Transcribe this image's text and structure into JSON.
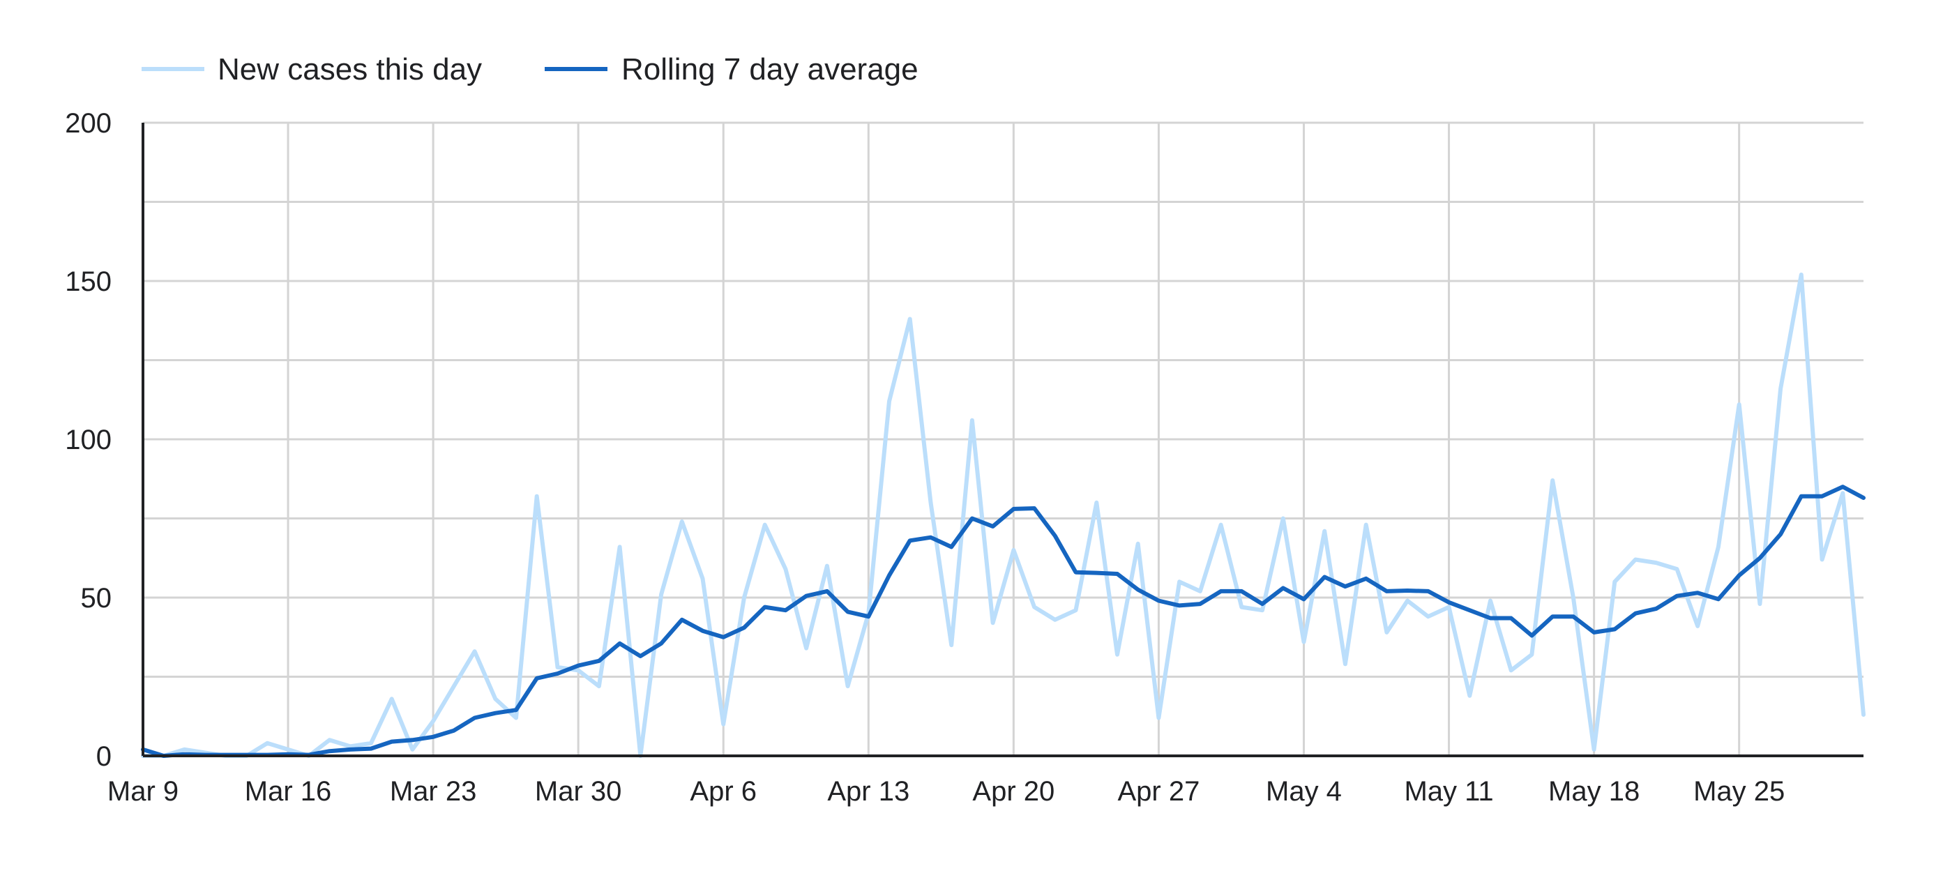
{
  "chart_data": {
    "type": "line",
    "title": "",
    "xlabel": "",
    "ylabel": "",
    "ylim": [
      0,
      200
    ],
    "y_ticks": [
      "0",
      "50",
      "100",
      "150",
      "200"
    ],
    "y_tick_values": [
      0,
      50,
      100,
      150,
      200
    ],
    "grid": true,
    "legend_position": "top-left",
    "x_start": "Mar 9",
    "x_end": "May 30",
    "x_ticks": [
      "Mar 9",
      "Mar 16",
      "Mar 23",
      "Mar 30",
      "Apr 6",
      "Apr 13",
      "Apr 20",
      "Apr 27",
      "May 4",
      "May 11",
      "May 18",
      "May 25"
    ],
    "series": [
      {
        "name": "New cases this day",
        "color": "#bbdefb",
        "values": [
          0,
          0,
          2,
          1,
          0,
          0,
          4,
          2,
          0,
          5,
          3,
          4,
          18,
          2,
          11,
          22,
          33,
          18,
          12,
          82,
          28,
          27,
          22,
          66,
          0,
          51,
          74,
          56,
          10,
          50,
          73,
          59,
          34,
          60,
          22,
          45,
          112,
          138,
          80,
          35,
          106,
          42,
          65,
          47,
          43,
          46,
          80,
          32,
          67,
          12,
          55,
          52,
          73,
          47,
          46,
          75,
          36,
          71,
          29,
          73,
          39,
          49,
          44,
          47,
          19,
          49,
          27,
          32,
          87,
          50,
          2,
          55,
          62,
          61,
          59,
          41,
          66,
          111,
          48,
          116,
          152,
          62,
          83,
          13
        ]
      },
      {
        "name": "Rolling 7 day average",
        "color": "#1565c0",
        "values": [
          2,
          0,
          0.5,
          0.3,
          0.3,
          0.3,
          0.3,
          0.5,
          0.3,
          1.5,
          2,
          2.3,
          4.5,
          5,
          6,
          8,
          12,
          13.5,
          14.5,
          24.5,
          26,
          28.5,
          30,
          35.5,
          31.5,
          35.5,
          43,
          39.5,
          37.5,
          40.5,
          47,
          46,
          50.5,
          52,
          45.5,
          44,
          57,
          68,
          69,
          66,
          75,
          72.5,
          78,
          78.2,
          69.5,
          58,
          57.8,
          57.5,
          52.5,
          49,
          47.5,
          48,
          52,
          52,
          48,
          53,
          49.5,
          56.5,
          53.5,
          56,
          52,
          52.2,
          52,
          48.5,
          46,
          43.5,
          43.5,
          38,
          44,
          44,
          39,
          40,
          45,
          46.5,
          50.5,
          51.5,
          49.5,
          57,
          62.5,
          70,
          82,
          82,
          85,
          81.5
        ]
      }
    ]
  }
}
